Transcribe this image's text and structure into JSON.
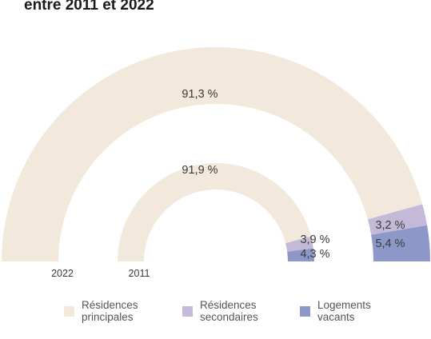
{
  "title": "entre 2011 et 2022",
  "colors": {
    "principales": "#f3e8dc",
    "secondaires": "#c4bad8",
    "vacants": "#8c98c8"
  },
  "chart_data": {
    "type": "semi-donut",
    "series": [
      {
        "name": "2022",
        "ring": "outer",
        "values": [
          {
            "category": "Résidences principales",
            "value": 91.3,
            "label": "91,3 %"
          },
          {
            "category": "Résidences secondaires",
            "value": 3.2,
            "label": "3,2 %"
          },
          {
            "category": "Logements vacants",
            "value": 5.4,
            "label": "5,4 %"
          }
        ]
      },
      {
        "name": "2011",
        "ring": "inner",
        "values": [
          {
            "category": "Résidences principales",
            "value": 91.9,
            "label": "91,9 %"
          },
          {
            "category": "Résidences secondaires",
            "value": 3.9,
            "label": "3,9 %"
          },
          {
            "category": "Logements vacants",
            "value": 4.3,
            "label": "4,3 %"
          }
        ]
      }
    ],
    "legend": [
      {
        "line1": "Résidences",
        "line2": "principales",
        "color_key": "principales"
      },
      {
        "line1": "Résidences",
        "line2": "secondaires",
        "color_key": "secondaires"
      },
      {
        "line1": "Logements",
        "line2": "vacants",
        "color_key": "vacants"
      }
    ]
  }
}
